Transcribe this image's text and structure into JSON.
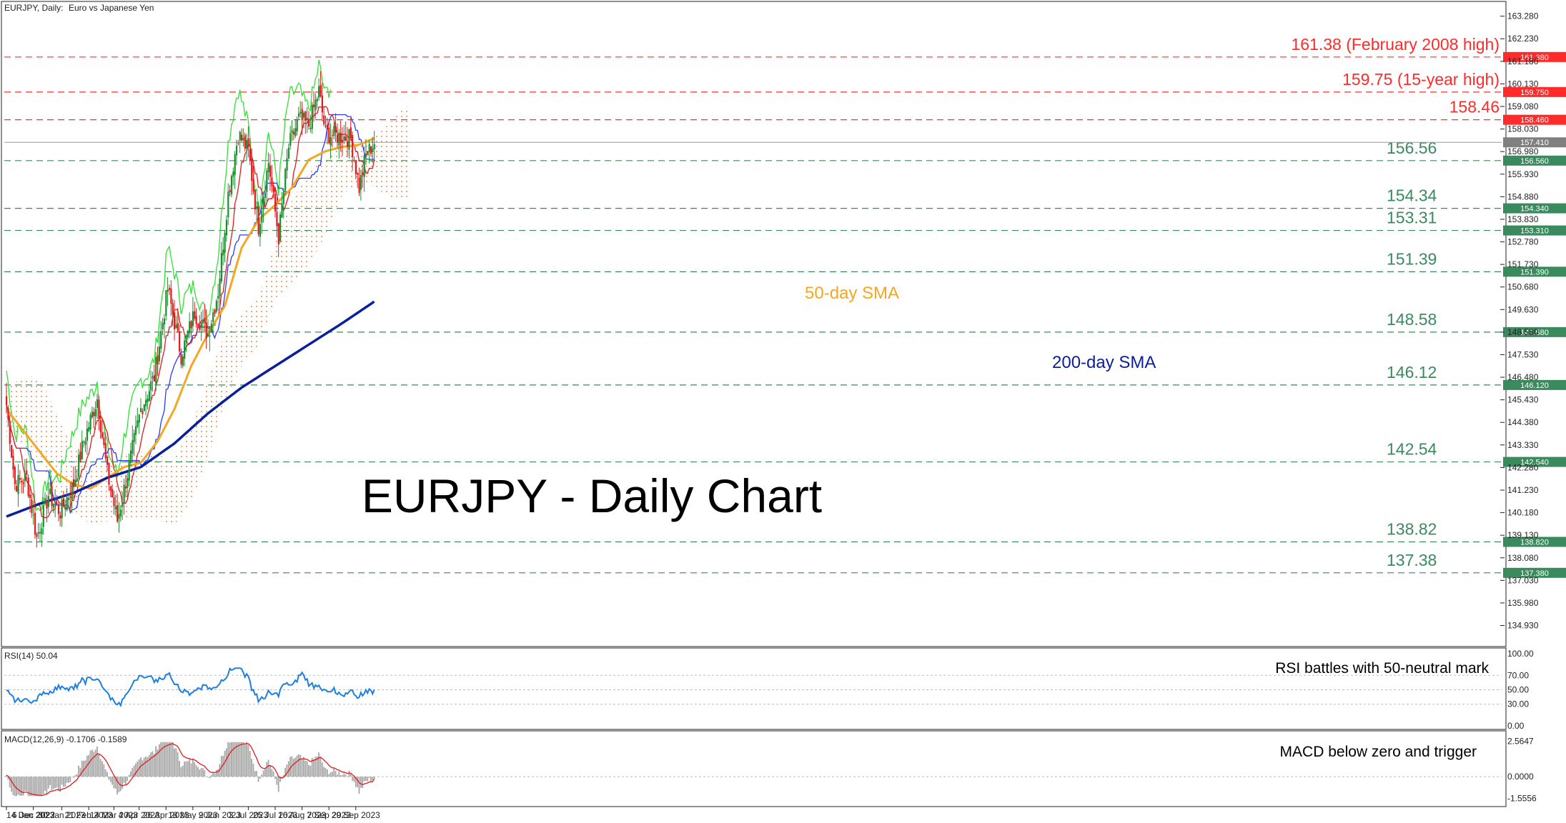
{
  "colors": {
    "level": "#3a8a5e",
    "resistance": "#ff2b2b",
    "sma50": "#f5a623",
    "sma200": "#0a1f9e",
    "tenkan": "#e31a1c",
    "kijun": "#2a3bff",
    "chikou": "#33e033",
    "cloud": "#e8a070",
    "bull": "#1a8f2e",
    "bear": "#e31a1c",
    "rsi": "#1f7fe0",
    "macd_hist": "#a6a6a6",
    "macd_signal": "#e31a1c"
  },
  "chart_data": {
    "type": "line",
    "header": {
      "symbol": "EURJPY, Daily:",
      "description": "Euro vs Japanese Yen"
    },
    "title": "EURJPY - Daily Chart",
    "x_tick_labels": [
      "14 Dec 2022",
      "6 Jan 2023",
      "30 Jan 2023",
      "21 Feb 2023",
      "14 Mar 2023",
      "4 Apr 2023",
      "26 Apr 2023",
      "18 May 2023",
      "9 Jun 2023",
      "3 Jul 2023",
      "25 Jul 2023",
      "16 Aug 2023",
      "7 Sep 2023",
      "29 Sep 2023"
    ],
    "x_tick_index": [
      0,
      16,
      33,
      49,
      64,
      79,
      95,
      111,
      127,
      144,
      160,
      176,
      192,
      208
    ],
    "total_bars": 220,
    "price_axis_ticks": [
      "163.280",
      "162.230",
      "161.180",
      "160.130",
      "159.080",
      "158.030",
      "156.980",
      "155.930",
      "154.880",
      "153.830",
      "152.780",
      "151.730",
      "150.680",
      "149.630",
      "148.580",
      "147.530",
      "146.480",
      "145.430",
      "144.380",
      "143.330",
      "142.280",
      "141.230",
      "140.180",
      "139.130",
      "138.080",
      "137.030",
      "135.980",
      "134.930"
    ],
    "ylim": [
      133.95,
      163.9
    ],
    "levels": [
      {
        "value": 161.38,
        "label": "161.38 (February 2008 high)",
        "tag": "161.380",
        "kind": "resistance"
      },
      {
        "value": 159.75,
        "label": "159.75 (15-year high)",
        "tag": "159.750",
        "kind": "resistance"
      },
      {
        "value": 158.46,
        "label": "158.46",
        "tag": "158.460",
        "kind": "resistance"
      },
      {
        "value": 156.56,
        "label": "156.56",
        "tag": "156.560",
        "kind": "support"
      },
      {
        "value": 154.34,
        "label": "154.34",
        "tag": "154.340",
        "kind": "support"
      },
      {
        "value": 153.31,
        "label": "153.31",
        "tag": "153.310",
        "kind": "support"
      },
      {
        "value": 151.39,
        "label": "151.39",
        "tag": "151.390",
        "kind": "support"
      },
      {
        "value": 148.58,
        "label": "148.58",
        "tag": "148.580",
        "kind": "support"
      },
      {
        "value": 146.12,
        "label": "146.12",
        "tag": "146.120",
        "kind": "support"
      },
      {
        "value": 142.54,
        "label": "142.54",
        "tag": "142.540",
        "kind": "support"
      },
      {
        "value": 138.82,
        "label": "138.82",
        "tag": "138.820",
        "kind": "support"
      },
      {
        "value": 137.38,
        "label": "137.38",
        "tag": "137.380",
        "kind": "support"
      }
    ],
    "last_price": {
      "value": 157.41,
      "tag": "157.410"
    },
    "sma_labels": {
      "sma50": "50-day SMA",
      "sma200": "200-day SMA"
    },
    "sma200_points": {
      "index": [
        0,
        20,
        40,
        60,
        80,
        100,
        120,
        140,
        160,
        180,
        200,
        219
      ],
      "value": [
        140.0,
        140.6,
        141.1,
        141.8,
        142.3,
        143.4,
        144.8,
        146.0,
        147.0,
        148.0,
        149.0,
        150.0
      ]
    },
    "sma50_points": {
      "index": [
        0,
        10,
        20,
        30,
        40,
        50,
        60,
        70,
        80,
        90,
        100,
        110,
        120,
        130,
        140,
        150,
        160,
        170,
        180,
        190,
        200,
        210,
        219
      ],
      "value": [
        145.0,
        144.0,
        143.0,
        142.0,
        141.5,
        141.3,
        141.8,
        142.3,
        142.5,
        143.5,
        145.0,
        147.0,
        148.5,
        149.8,
        152.5,
        153.8,
        154.5,
        155.3,
        156.6,
        157.0,
        157.2,
        157.3,
        157.6
      ]
    },
    "rsi": {
      "label": "RSI(14) 50.04",
      "last": 50.04,
      "ticks": [
        "100.00",
        "70.00",
        "50.00",
        "30.00",
        "0.00"
      ],
      "annotation": "RSI battles with 50-neutral mark"
    },
    "macd": {
      "label": "MACD(12,26,9) -0.1706 -0.1589",
      "macd": -0.1706,
      "signal": -0.1589,
      "ticks": [
        "2.5647",
        "0.0000",
        "-1.5556"
      ],
      "annotation": "MACD below zero and trigger"
    }
  }
}
